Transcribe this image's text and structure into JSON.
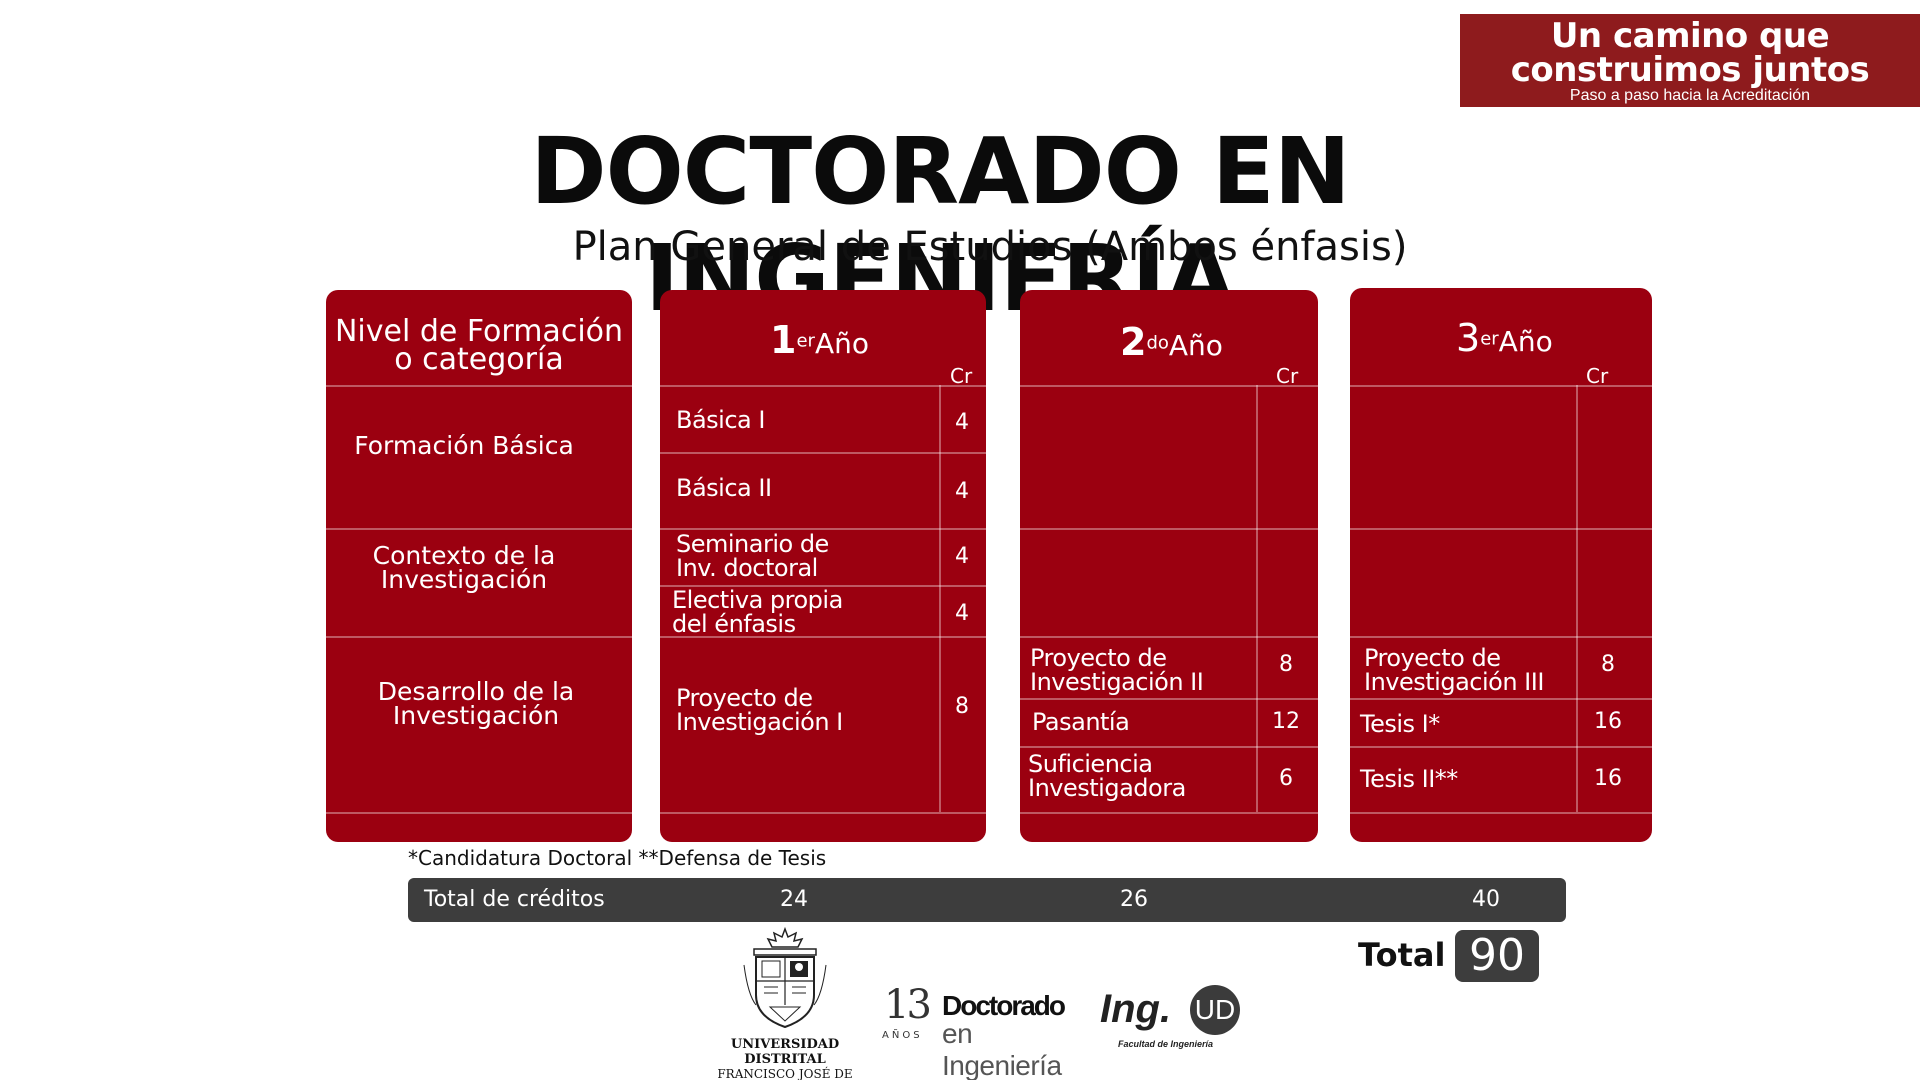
{
  "banner": {
    "line1": "Un camino que",
    "line2": "construimos juntos",
    "line3": "Paso a paso hacia la Acreditación"
  },
  "title": "DOCTORADO EN INGENIERÍA",
  "subtitle": "Plan General de Estudios  (Ambos énfasis)",
  "categories": {
    "header_line1": "Nivel de Formación",
    "header_line2": "o categoría",
    "basica": "Formación Básica",
    "contexto_line1": "Contexto de la",
    "contexto_line2": "Investigación",
    "desarrollo_line1": "Desarrollo de la",
    "desarrollo_line2": "Investigación"
  },
  "year1": {
    "num": "1",
    "sup": "er",
    "word": "Año",
    "cr": "Cr",
    "courses": [
      {
        "line1": "Básica I",
        "line2": "",
        "credits": "4"
      },
      {
        "line1": "Básica II",
        "line2": "",
        "credits": "4"
      },
      {
        "line1": "Seminario de",
        "line2": "Inv. doctoral",
        "credits": "4"
      },
      {
        "line1": "Electiva propia",
        "line2": "del énfasis",
        "credits": "4"
      },
      {
        "line1": "Proyecto de",
        "line2": "Investigación I",
        "credits": "8"
      }
    ]
  },
  "year2": {
    "num": "2",
    "sup": "do",
    "word": "Año",
    "cr": "Cr",
    "courses": [
      {
        "line1": "Proyecto de",
        "line2": "Investigación II",
        "credits": "8"
      },
      {
        "line1": "Pasantía",
        "line2": "",
        "credits": "12"
      },
      {
        "line1": "Suficiencia",
        "line2": "Investigadora",
        "credits": "6"
      }
    ]
  },
  "year3": {
    "num": "3",
    "sup": "er",
    "word": "Año",
    "cr": "Cr",
    "courses": [
      {
        "line1": "Proyecto de",
        "line2": "Investigación III",
        "credits": "8"
      },
      {
        "line1": "Tesis I*",
        "line2": "",
        "credits": "16"
      },
      {
        "line1": "Tesis II**",
        "line2": "",
        "credits": "16"
      }
    ]
  },
  "footnote": "*Candidatura Doctoral **Defensa de Tesis",
  "totals": {
    "label": "Total de créditos",
    "year1": "24",
    "year2": "26",
    "year3": "40"
  },
  "grand_total": {
    "label": "Total",
    "value": "90"
  },
  "logos": {
    "ud_line1": "UNIVERSIDAD DISTRITAL",
    "ud_line2": "FRANCISCO JOSÉ DE CALDAS",
    "doc_number": "13",
    "doc_anos": "AÑOS",
    "doc_line1": "Doctorado",
    "doc_line2": "en Ingeniería",
    "ing_text": "Ing.",
    "ing_ud": "UD",
    "ing_sub": "Facultad de Ingeniería"
  },
  "colors": {
    "card_red": "#9b0010",
    "banner_red": "#8e1b1d",
    "total_bar": "#3d3d3d"
  }
}
